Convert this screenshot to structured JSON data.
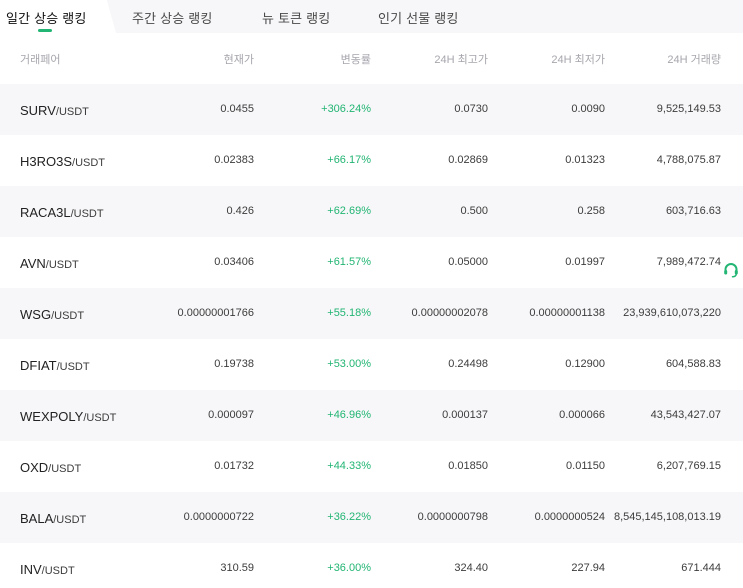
{
  "tabs": [
    {
      "label": "일간 상승 랭킹",
      "active": true
    },
    {
      "label": "주간 상승 랭킹",
      "active": false
    },
    {
      "label": "뉴 토큰 랭킹",
      "active": false
    },
    {
      "label": "인기 선물 랭킹",
      "active": false
    }
  ],
  "columns": {
    "pair": "거래페어",
    "price": "현재가",
    "change": "변동률",
    "high": "24H 최고가",
    "low": "24H 최저가",
    "volume": "24H 거래량"
  },
  "rows": [
    {
      "base": "SURV",
      "quote": "/USDT",
      "price": "0.0455",
      "change": "+306.24%",
      "high": "0.0730",
      "low": "0.0090",
      "volume": "9,525,149.53"
    },
    {
      "base": "H3RO3S",
      "quote": "/USDT",
      "price": "0.02383",
      "change": "+66.17%",
      "high": "0.02869",
      "low": "0.01323",
      "volume": "4,788,075.87"
    },
    {
      "base": "RACA3L",
      "quote": "/USDT",
      "price": "0.426",
      "change": "+62.69%",
      "high": "0.500",
      "low": "0.258",
      "volume": "603,716.63"
    },
    {
      "base": "AVN",
      "quote": "/USDT",
      "price": "0.03406",
      "change": "+61.57%",
      "high": "0.05000",
      "low": "0.01997",
      "volume": "7,989,472.74"
    },
    {
      "base": "WSG",
      "quote": "/USDT",
      "price": "0.00000001766",
      "change": "+55.18%",
      "high": "0.00000002078",
      "low": "0.00000001138",
      "volume": "23,939,610,073,220"
    },
    {
      "base": "DFIAT",
      "quote": "/USDT",
      "price": "0.19738",
      "change": "+53.00%",
      "high": "0.24498",
      "low": "0.12900",
      "volume": "604,588.83"
    },
    {
      "base": "WEXPOLY",
      "quote": "/USDT",
      "price": "0.000097",
      "change": "+46.96%",
      "high": "0.000137",
      "low": "0.000066",
      "volume": "43,543,427.07"
    },
    {
      "base": "OXD",
      "quote": "/USDT",
      "price": "0.01732",
      "change": "+44.33%",
      "high": "0.01850",
      "low": "0.01150",
      "volume": "6,207,769.15"
    },
    {
      "base": "BALA",
      "quote": "/USDT",
      "price": "0.0000000722",
      "change": "+36.22%",
      "high": "0.0000000798",
      "low": "0.0000000524",
      "volume": "8,545,145,108,013.19"
    },
    {
      "base": "INV",
      "quote": "/USDT",
      "price": "310.59",
      "change": "+36.00%",
      "high": "324.40",
      "low": "227.94",
      "volume": "671.444"
    }
  ],
  "colors": {
    "accent": "#22b573",
    "header_text": "#a6a6ad",
    "alt_row": "#f7f7f9"
  },
  "icons": {
    "support": "headset-icon"
  }
}
